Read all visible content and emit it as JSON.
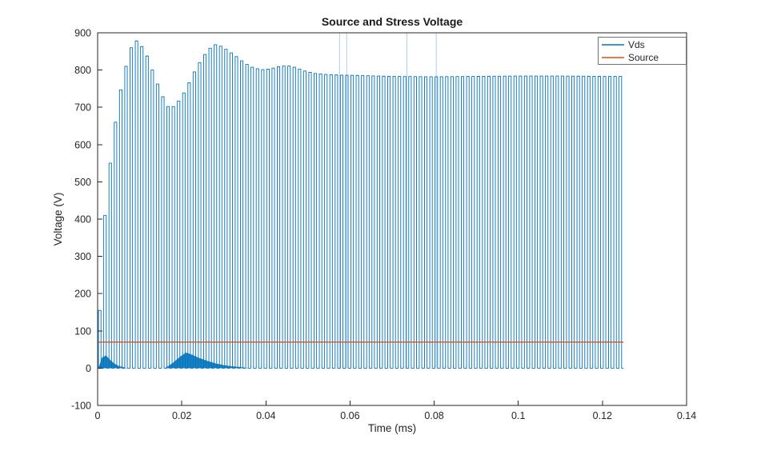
{
  "figure_title": "Source and Stress Voltage",
  "legend": {
    "entries": [
      {
        "label": "Vds",
        "color": "#0072BD"
      },
      {
        "label": "Source",
        "color": "#D95319"
      }
    ]
  },
  "chart_data": {
    "type": "line",
    "title": "Source and Stress Voltage",
    "xlabel": "Time (ms)",
    "ylabel": "Voltage (V)",
    "xlim": [
      0,
      0.14
    ],
    "ylim": [
      -100,
      900
    ],
    "xticks": [
      0,
      0.02,
      0.04,
      0.06,
      0.08,
      0.1,
      0.12,
      0.14
    ],
    "xtick_labels": [
      "0",
      "0.02",
      "0.04",
      "0.06",
      "0.08",
      "0.1",
      "0.12",
      "0.14"
    ],
    "yticks": [
      -100,
      0,
      100,
      200,
      300,
      400,
      500,
      600,
      700,
      800,
      900
    ],
    "ytick_labels": [
      "-100",
      "0",
      "100",
      "200",
      "300",
      "400",
      "500",
      "600",
      "700",
      "800",
      "900"
    ],
    "grid": false,
    "box": true,
    "legend_position": "northeast",
    "series": [
      {
        "name": "Vds",
        "color": "#0072BD",
        "type": "pulse-train",
        "description": "High-frequency switching waveform from 0 V up to an envelope; envelope overshoots to ~880 V, rings, then settles near 783 V",
        "period_ms": 0.00125,
        "duty": 0.48,
        "t_start": 0.0002,
        "t_end": 0.125,
        "baseline": 0,
        "envelope": [
          [
            0.0002,
            60
          ],
          [
            0.0008,
            250
          ],
          [
            0.0015,
            380
          ],
          [
            0.0025,
            500
          ],
          [
            0.0035,
            600
          ],
          [
            0.005,
            720
          ],
          [
            0.0065,
            800
          ],
          [
            0.008,
            860
          ],
          [
            0.009,
            880
          ],
          [
            0.01,
            872
          ],
          [
            0.0115,
            845
          ],
          [
            0.013,
            800
          ],
          [
            0.0145,
            755
          ],
          [
            0.016,
            715
          ],
          [
            0.017,
            698
          ],
          [
            0.018,
            702
          ],
          [
            0.0195,
            720
          ],
          [
            0.021,
            748
          ],
          [
            0.023,
            795
          ],
          [
            0.025,
            835
          ],
          [
            0.027,
            862
          ],
          [
            0.028,
            868
          ],
          [
            0.0295,
            863
          ],
          [
            0.031,
            852
          ],
          [
            0.033,
            836
          ],
          [
            0.035,
            818
          ],
          [
            0.037,
            806
          ],
          [
            0.039,
            801
          ],
          [
            0.041,
            803
          ],
          [
            0.043,
            809
          ],
          [
            0.045,
            812
          ],
          [
            0.047,
            807
          ],
          [
            0.049,
            798
          ],
          [
            0.052,
            790
          ],
          [
            0.056,
            787
          ],
          [
            0.06,
            786
          ],
          [
            0.07,
            783
          ],
          [
            0.08,
            782
          ],
          [
            0.09,
            783
          ],
          [
            0.1,
            784
          ],
          [
            0.11,
            784
          ],
          [
            0.12,
            783
          ],
          [
            0.125,
            783
          ]
        ],
        "lower_bumps": [
          [
            [
              0.0002,
              0
            ],
            [
              0.001,
              28
            ],
            [
              0.002,
              34
            ],
            [
              0.003,
              22
            ],
            [
              0.004,
              12
            ],
            [
              0.005,
              6
            ],
            [
              0.006,
              3
            ],
            [
              0.007,
              0
            ]
          ],
          [
            [
              0.016,
              0
            ],
            [
              0.018,
              15
            ],
            [
              0.0195,
              30
            ],
            [
              0.021,
              42
            ],
            [
              0.0225,
              36
            ],
            [
              0.024,
              28
            ],
            [
              0.026,
              20
            ],
            [
              0.028,
              13
            ],
            [
              0.03,
              8
            ],
            [
              0.032,
              5
            ],
            [
              0.034,
              3
            ],
            [
              0.036,
              0
            ]
          ]
        ],
        "artifact_spikes_t": [
          0.0575,
          0.0592,
          0.0735,
          0.0805
        ],
        "artifact_spike_top": 900
      },
      {
        "name": "Source",
        "color": "#D95319",
        "type": "line",
        "x": [
          0,
          0.125
        ],
        "y": [
          70,
          70
        ]
      }
    ]
  }
}
